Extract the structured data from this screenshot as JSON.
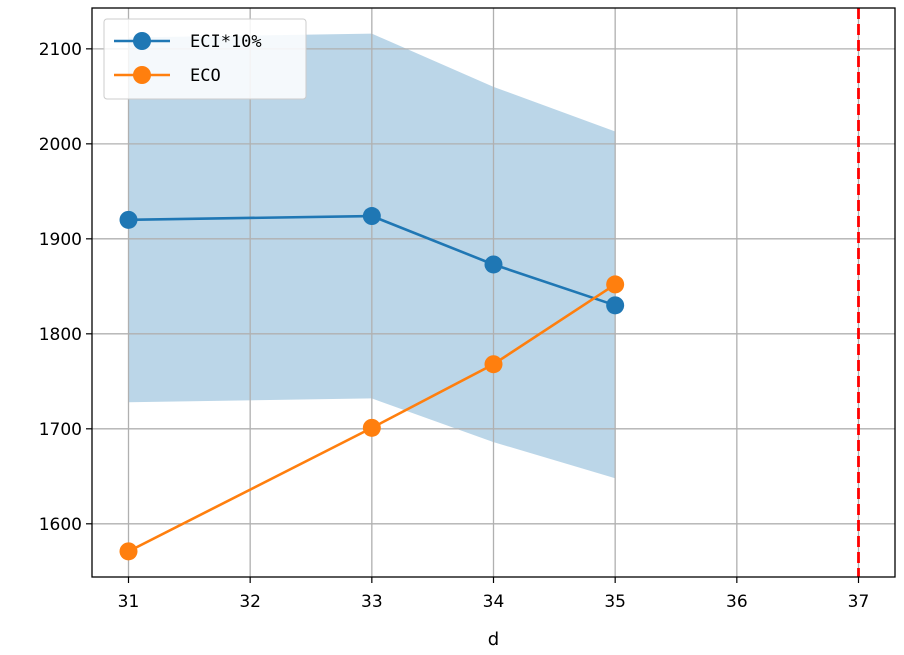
{
  "chart_data": {
    "type": "line",
    "title": "",
    "xlabel": "d",
    "ylabel": "",
    "xlim": [
      30.7,
      37.3
    ],
    "ylim": [
      1544,
      2143
    ],
    "x_ticks": [
      31,
      32,
      33,
      34,
      35,
      36,
      37
    ],
    "y_ticks": [
      1600,
      1700,
      1800,
      1900,
      2000,
      2100
    ],
    "grid": true,
    "legend_position": "upper-left",
    "series": [
      {
        "name": "ECI*10%",
        "color": "#1f77b4",
        "marker": "circle",
        "points": [
          {
            "x": 31,
            "y": 1920
          },
          {
            "x": 33,
            "y": 1924
          },
          {
            "x": 34,
            "y": 1873
          },
          {
            "x": 35,
            "y": 1830
          }
        ]
      },
      {
        "name": "ECO",
        "color": "#ff7f0e",
        "marker": "circle",
        "points": [
          {
            "x": 31,
            "y": 1571
          },
          {
            "x": 33,
            "y": 1701
          },
          {
            "x": 34,
            "y": 1768
          },
          {
            "x": 35,
            "y": 1852
          }
        ]
      }
    ],
    "band": {
      "color": "#1f77b4",
      "opacity": 0.3,
      "points": [
        {
          "x": 31,
          "low": 1728,
          "high": 2112
        },
        {
          "x": 33,
          "low": 1732,
          "high": 2116
        },
        {
          "x": 34,
          "low": 1686,
          "high": 2060
        },
        {
          "x": 35,
          "low": 1648,
          "high": 2013
        }
      ]
    },
    "vline": {
      "x": 37,
      "color": "#ff0000",
      "style": "dashed"
    }
  }
}
